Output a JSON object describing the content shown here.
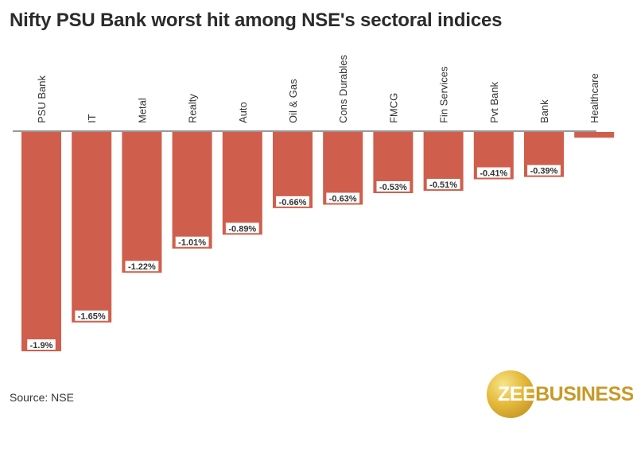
{
  "title": "Nifty PSU Bank worst hit among NSE's sectoral indices",
  "source": "Source: NSE",
  "logo": {
    "part1": "ZEE",
    "part2": "BUSINESS"
  },
  "colors": {
    "bar": "#cf5f4c",
    "label_bg": "#ffffff",
    "label_text": "#333333",
    "axis": "#333333"
  },
  "chart_data": {
    "type": "bar",
    "categories": [
      "PSU Bank",
      "IT",
      "Metal",
      "Realty",
      "Auto",
      "Oil & Gas",
      "Cons Durables",
      "FMCG",
      "Fin Services",
      "Pvt Bank",
      "Bank",
      "Healthcare"
    ],
    "values": [
      -1.9,
      -1.65,
      -1.22,
      -1.01,
      -0.89,
      -0.66,
      -0.63,
      -0.53,
      -0.51,
      -0.41,
      -0.39,
      -0.05
    ],
    "labels": [
      "-1.9%",
      "-1.65%",
      "-1.22%",
      "-1.01%",
      "-0.89%",
      "-0.66%",
      "-0.63%",
      "-0.53%",
      "-0.51%",
      "-0.41%",
      "-0.39%",
      ""
    ],
    "title": "Nifty PSU Bank worst hit among NSE's sectoral indices",
    "xlabel": "",
    "ylabel": "",
    "ylim": [
      -1.9,
      0
    ],
    "category_label_position": "top, rotated vertical",
    "grid": false
  }
}
